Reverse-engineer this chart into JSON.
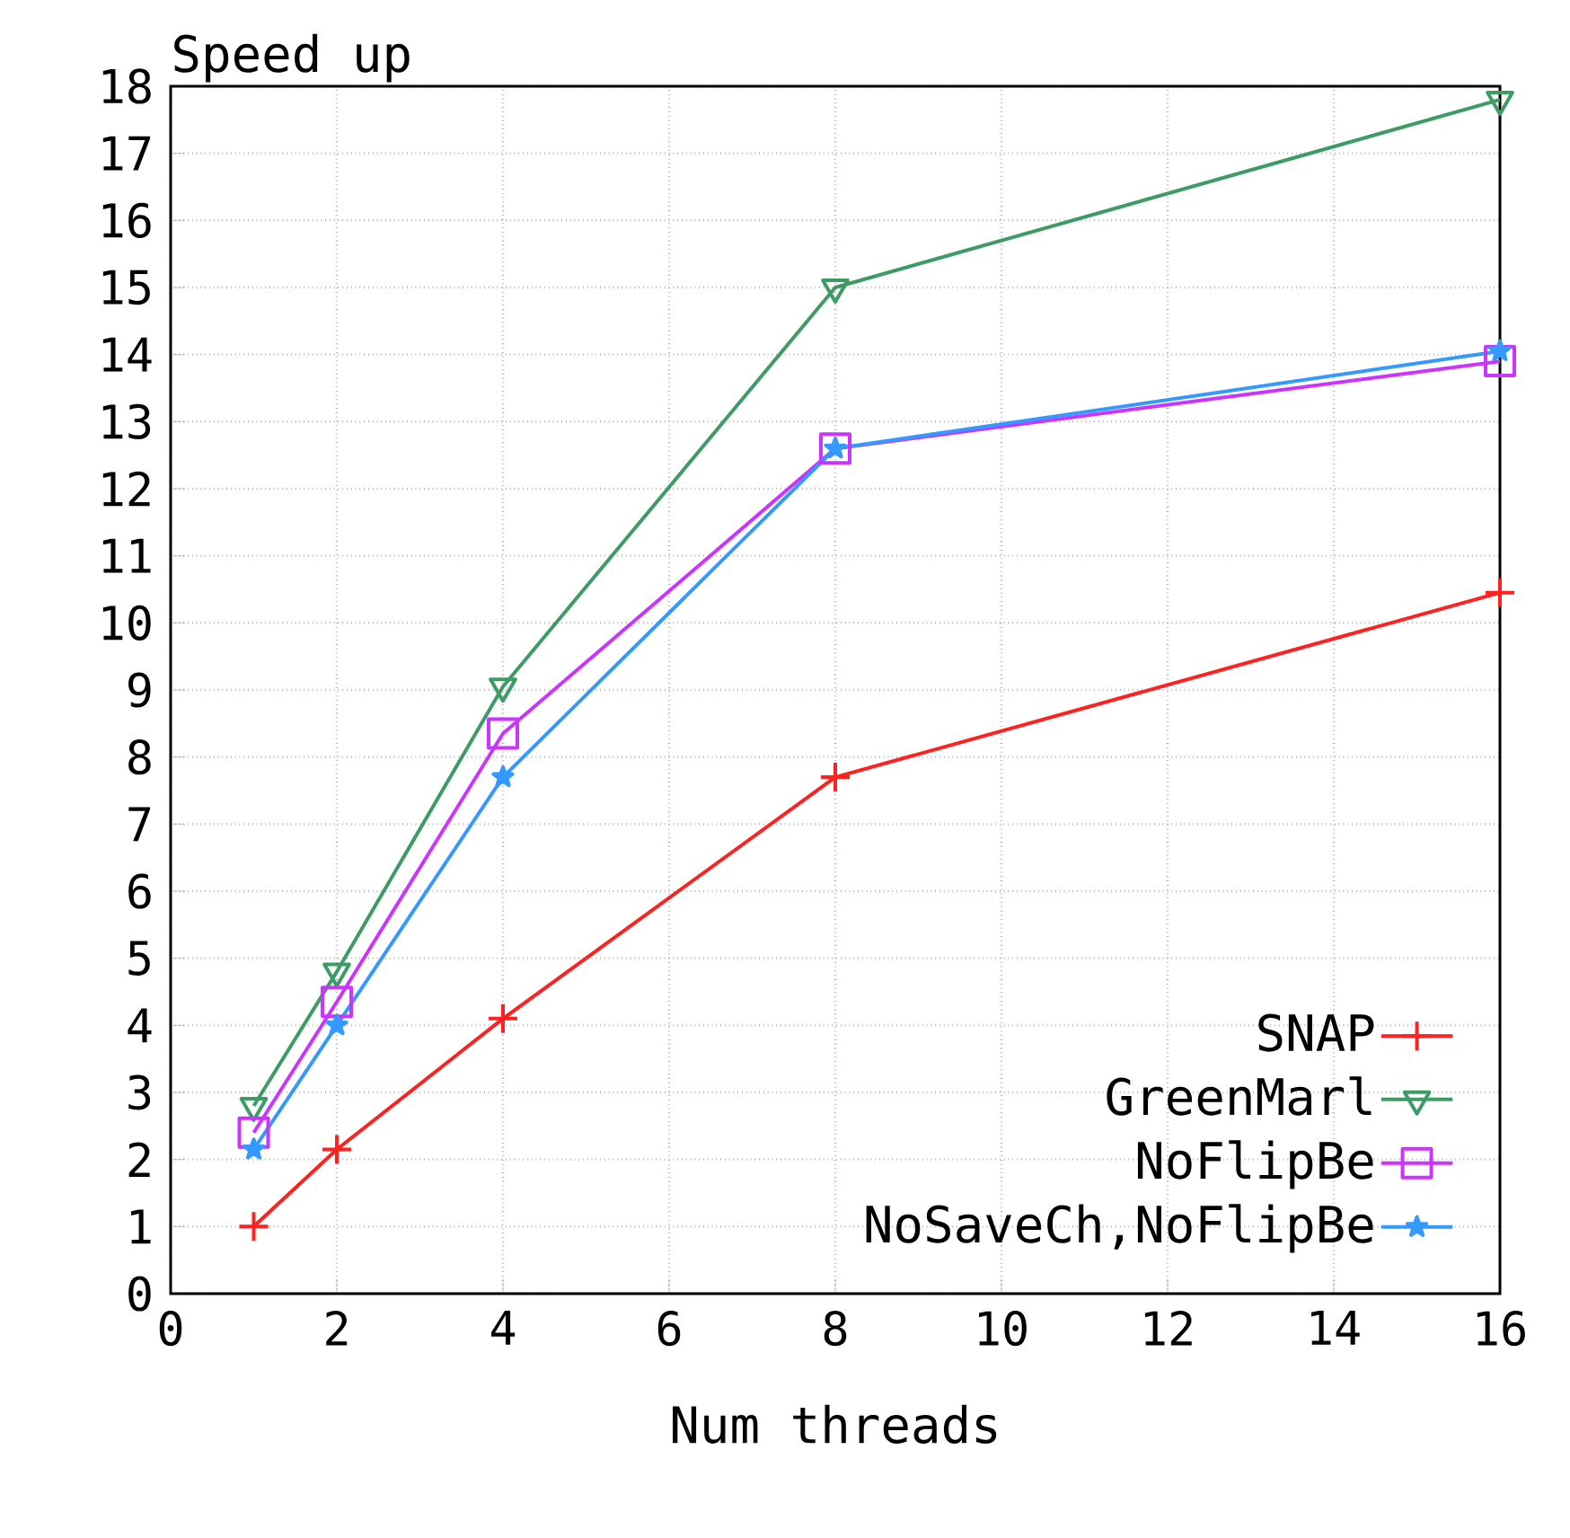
{
  "chart_data": {
    "type": "line",
    "title": "Speed up",
    "xlabel": "Num threads",
    "x": [
      1,
      2,
      4,
      8,
      16
    ],
    "xlim": [
      0,
      16
    ],
    "xticks": [
      0,
      2,
      4,
      6,
      8,
      10,
      12,
      14,
      16
    ],
    "ylim": [
      0,
      18
    ],
    "yticks": [
      0,
      1,
      2,
      3,
      4,
      5,
      6,
      7,
      8,
      9,
      10,
      11,
      12,
      13,
      14,
      15,
      16,
      17,
      18
    ],
    "grid": true,
    "legend": "bottom right",
    "line_style": "solid",
    "series": [
      {
        "name": "SNAP",
        "color": "#ff2020",
        "marker": "cross",
        "values": [
          1,
          2.15,
          4.1,
          7.7,
          10.45
        ]
      },
      {
        "name": "GreenMarl",
        "color": "#3c9c64",
        "marker": "triangle",
        "values": [
          2.8,
          4.8,
          9.05,
          15,
          17.8
        ]
      },
      {
        "name": "NoFlipBe",
        "color": "#cc33ff",
        "marker": "square",
        "values": [
          2.4,
          4.35,
          8.35,
          12.6,
          13.9
        ]
      },
      {
        "name": "NoSaveCh,NoFlipBe",
        "color": "#3399ff",
        "marker": "star",
        "values": [
          2.15,
          4.0,
          7.7,
          12.6,
          14.05
        ]
      }
    ]
  }
}
